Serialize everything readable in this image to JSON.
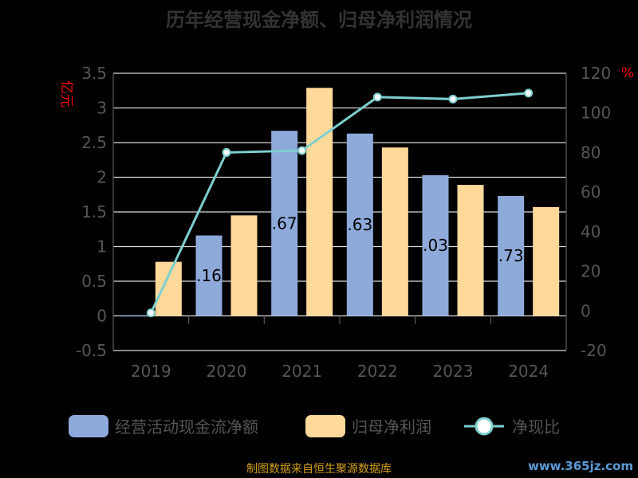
{
  "chart_data": {
    "type": "bar",
    "title": "历年经营现金净额、归母净利润情况",
    "categories": [
      "2019",
      "2020",
      "2021",
      "2022",
      "2023",
      "2024"
    ],
    "series": [
      {
        "name": "经营活动现金流净额",
        "type": "bar",
        "axis": "left",
        "values": [
          0.0,
          1.16,
          2.67,
          2.63,
          2.03,
          1.73
        ],
        "labels": [
          "",
          ".16",
          ".67",
          ".63",
          ".03",
          ".73"
        ],
        "color": "#8eaadb"
      },
      {
        "name": "归母净利润",
        "type": "bar",
        "axis": "left",
        "values": [
          0.78,
          1.45,
          3.29,
          2.43,
          1.89,
          1.57
        ],
        "color": "#ffd99a"
      },
      {
        "name": "净现比",
        "type": "line",
        "axis": "right",
        "values": [
          -1,
          80,
          81,
          108,
          107,
          110
        ],
        "color": "#7ecfcf"
      }
    ],
    "yleft": {
      "label": "亿元",
      "ticks": [
        "3.5",
        "3",
        "2.5",
        "2",
        "1.5",
        "1",
        "0.5",
        "0",
        "-0.5"
      ],
      "lim": [
        -0.5,
        3.5
      ]
    },
    "yright": {
      "label": "%",
      "ticks": [
        "120",
        "100",
        "80",
        "60",
        "40",
        "20",
        "0",
        "-20"
      ],
      "lim": [
        -20,
        120
      ]
    },
    "grid": true,
    "legend_position": "bottom"
  },
  "footer": {
    "source": "制图数据来自恒生聚源数据库",
    "watermark": "www.365jz.com"
  },
  "colors": {
    "axis_text": "#555555",
    "grid": "#d9d9d9",
    "axis_title": "#ff0000",
    "title": "#333333"
  }
}
